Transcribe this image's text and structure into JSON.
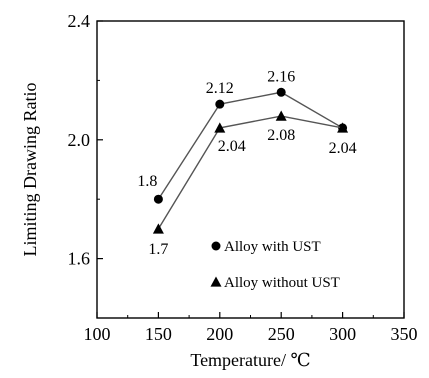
{
  "chart_data": {
    "type": "line",
    "xlabel": "Temperature/ ℃",
    "ylabel": "Limiting Drawing Ratio",
    "xlim": [
      100,
      350
    ],
    "ylim": [
      1.4,
      2.4
    ],
    "x_ticks": [
      100,
      150,
      200,
      250,
      300,
      350
    ],
    "x_tick_labels": [
      "100",
      "150",
      "200",
      "250",
      "300",
      "350"
    ],
    "y_ticks": [
      1.6,
      2.0,
      2.4
    ],
    "y_tick_labels": [
      "1.6",
      "2.0",
      "2.4"
    ],
    "grid": false,
    "legend_position": "bottom-right",
    "series": [
      {
        "name": "Alloy with UST",
        "marker": "circle",
        "x": [
          150,
          200,
          250,
          300
        ],
        "y": [
          1.8,
          2.12,
          2.16,
          2.04
        ],
        "labels": [
          "1.8",
          "2.12",
          "2.16",
          ""
        ]
      },
      {
        "name": "Alloy without UST",
        "marker": "triangle",
        "x": [
          150,
          200,
          250,
          300
        ],
        "y": [
          1.7,
          2.04,
          2.08,
          2.04
        ],
        "labels": [
          "1.7",
          "2.04",
          "2.08",
          "2.04"
        ]
      }
    ]
  }
}
